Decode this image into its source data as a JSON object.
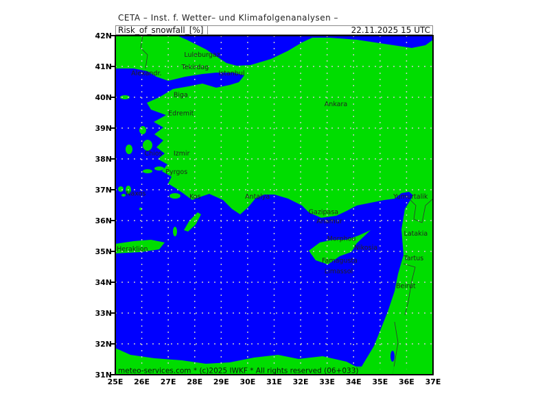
{
  "header": {
    "title": "CETA – Inst. f. Wetter– und Klimafolgenanalysen –",
    "parameter": "Risk_of_snowfall_[%]",
    "valid_time": "22.11.2025 15 UTC"
  },
  "footer": {
    "credit": "meteo-services.com * (c)2025 IWKF * All rights reserved (06+033)"
  },
  "colors": {
    "land": "#00dd00",
    "sea": "#0000ff",
    "grid": "#cccccc"
  },
  "axes": {
    "lat_labels": [
      "42N",
      "41N",
      "40N",
      "39N",
      "38N",
      "37N",
      "36N",
      "35N",
      "34N",
      "33N",
      "32N",
      "31N"
    ],
    "lon_labels": [
      "25E",
      "26E",
      "27E",
      "28E",
      "29E",
      "30E",
      "31E",
      "32E",
      "33E",
      "34E",
      "35E",
      "36E",
      "37E"
    ]
  },
  "cities": [
    {
      "name": "Luleburgaz",
      "lon": 27.6,
      "lat": 41.4
    },
    {
      "name": "Tekirdag",
      "lon": 27.5,
      "lat": 41.0
    },
    {
      "name": "Alexandr.",
      "lon": 25.6,
      "lat": 40.8
    },
    {
      "name": "Istanbul",
      "lon": 28.9,
      "lat": 40.8
    },
    {
      "name": "Biga",
      "lon": 27.2,
      "lat": 40.1
    },
    {
      "name": "Edremit",
      "lon": 27.0,
      "lat": 39.5
    },
    {
      "name": "Ankara",
      "lon": 32.9,
      "lat": 39.8
    },
    {
      "name": "Chios",
      "lon": 26.1,
      "lat": 38.2
    },
    {
      "name": "Izmir",
      "lon": 27.2,
      "lat": 38.2
    },
    {
      "name": "Pyrgos",
      "lon": 26.9,
      "lat": 37.6
    },
    {
      "name": "Naxos",
      "lon": 25.4,
      "lat": 36.9
    },
    {
      "name": "Kos",
      "lon": 27.8,
      "lat": 36.8
    },
    {
      "name": "Antalya",
      "lon": 29.9,
      "lat": 36.8
    },
    {
      "name": "Heraklion",
      "lon": 24.9,
      "lat": 35.1
    },
    {
      "name": "Gazipasa",
      "lon": 32.3,
      "lat": 36.3
    },
    {
      "name": "Anamur",
      "lon": 32.6,
      "lat": 36.0
    },
    {
      "name": "Yumurtalik",
      "lon": 35.5,
      "lat": 36.8
    },
    {
      "name": "Morphou",
      "lon": 33.0,
      "lat": 35.3
    },
    {
      "name": "Nikosia",
      "lon": 33.5,
      "lat": 35.1
    },
    {
      "name": "Famagusta",
      "lon": 32.8,
      "lat": 34.9
    },
    {
      "name": "Limassol",
      "lon": 32.9,
      "lat": 34.8
    },
    {
      "name": "Latakia",
      "lon": 35.9,
      "lat": 35.6
    },
    {
      "name": "Tartus",
      "lon": 35.9,
      "lat": 34.8
    },
    {
      "name": "Beirut",
      "lon": 35.6,
      "lat": 33.9
    }
  ]
}
